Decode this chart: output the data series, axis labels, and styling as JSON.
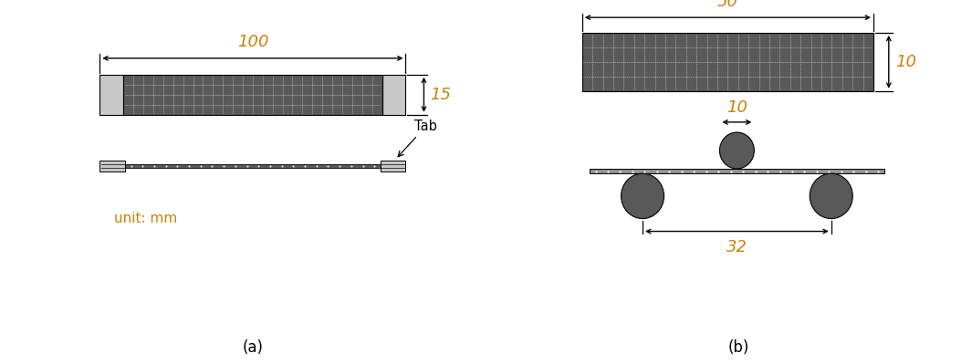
{
  "fig_width": 10.65,
  "fig_height": 3.99,
  "dpi": 100,
  "bg_color": "#ffffff",
  "dark_gray": "#595959",
  "light_gray": "#c8c8c8",
  "medium_gray": "#909090",
  "dim_color": "#c8820a",
  "text_color": "#000000",
  "panel_a_label": "(a)",
  "panel_b_label": "(b)",
  "unit_text": "unit: mm"
}
